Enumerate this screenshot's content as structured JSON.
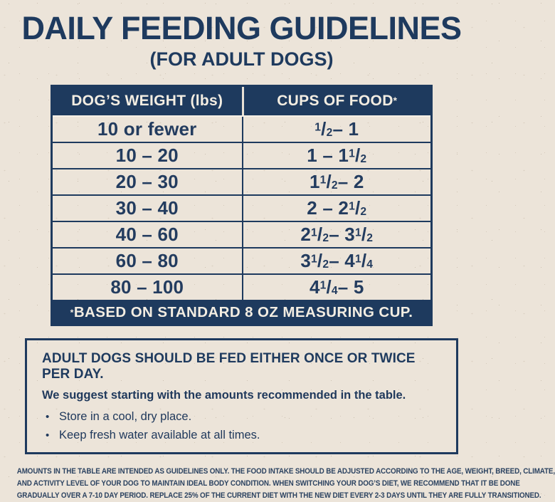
{
  "page": {
    "title": "DAILY FEEDING GUIDELINES",
    "subtitle": "(FOR ADULT DOGS)"
  },
  "colors": {
    "navy": "#1e3a5e",
    "cream_background": "#ece4d9",
    "header_text": "#f3ede2"
  },
  "table": {
    "headers": [
      "DOG’S WEIGHT (lbs)",
      "CUPS OF FOOD*"
    ],
    "rows": [
      {
        "weight": "10 or fewer",
        "cups": "1/2 – 1"
      },
      {
        "weight": "10 – 20",
        "cups": "1 – 1 1/2"
      },
      {
        "weight": "20 – 30",
        "cups": "1 1/2 – 2"
      },
      {
        "weight": "30 – 40",
        "cups": "2 – 2 1/2"
      },
      {
        "weight": "40 – 60",
        "cups": "2 1/2 – 3 1/2"
      },
      {
        "weight": "60 – 80",
        "cups": "3 1/2 – 4 1/4"
      },
      {
        "weight": "80 – 100",
        "cups": "4 1/4 – 5"
      }
    ],
    "footnote": "*BASED ON STANDARD 8 OZ MEASURING CUP."
  },
  "info_box": {
    "heading": "ADULT DOGS SHOULD BE FED EITHER ONCE OR TWICE PER DAY.",
    "subheading": "We suggest starting with the amounts recommended in the table.",
    "bullet_icon": "•",
    "bullets": [
      "Store in a cool, dry place.",
      "Keep fresh water available at all times."
    ]
  },
  "fine_print": {
    "lines": [
      "AMOUNTS IN THE TABLE ARE INTENDED AS GUIDELINES ONLY. THE FOOD INTAKE SHOULD BE ADJUSTED ACCORDING TO THE AGE, WEIGHT, BREED, CLIMATE,",
      "AND ACTIVITY LEVEL OF YOUR DOG TO MAINTAIN IDEAL BODY CONDITION. WHEN SWITCHING YOUR DOG’S DIET, WE RECOMMEND THAT IT BE DONE",
      "GRADUALLY OVER A 7-10 DAY PERIOD. REPLACE 25% OF THE CURRENT DIET WITH THE NEW DIET EVERY 2-3 DAYS UNTIL THEY ARE FULLY TRANSITIONED."
    ]
  }
}
